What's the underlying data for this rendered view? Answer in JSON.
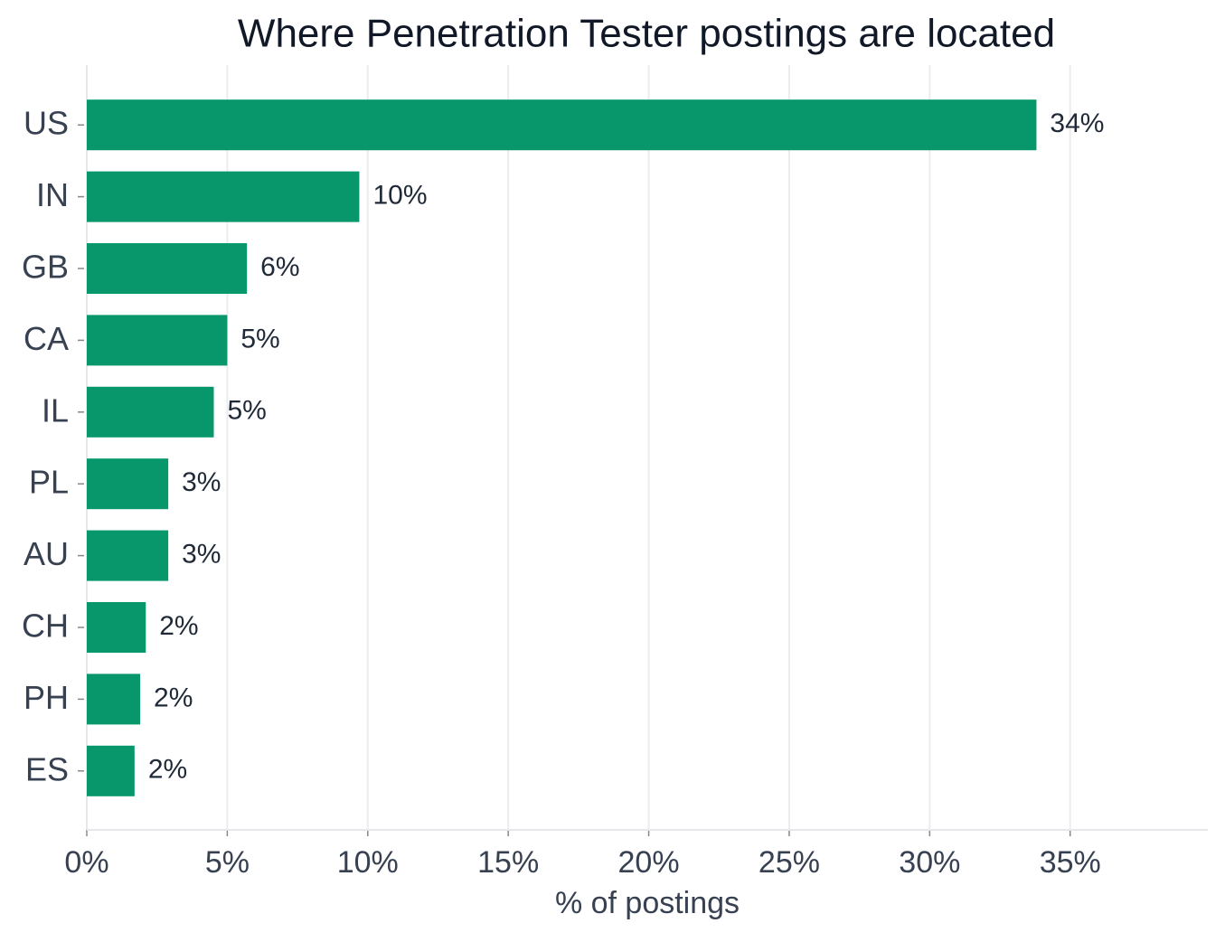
{
  "chart_data": {
    "type": "barh",
    "title": "Where Penetration Tester postings are located",
    "x_label": "% of postings",
    "categories": [
      "US",
      "IN",
      "GB",
      "CA",
      "IL",
      "PL",
      "AU",
      "CH",
      "PH",
      "ES"
    ],
    "values": [
      33.8,
      9.7,
      5.7,
      5.0,
      4.52,
      2.9,
      2.9,
      2.1,
      1.9,
      1.7
    ],
    "value_labels": [
      "34%",
      "10%",
      "6%",
      "5%",
      "5%",
      "3%",
      "3%",
      "2%",
      "2%",
      "2%"
    ],
    "color": "#07976b",
    "xlim": [
      0,
      39.9
    ],
    "xticks": [
      {
        "value": 0,
        "label": "0%"
      },
      {
        "value": 5,
        "label": "5%"
      },
      {
        "value": 10,
        "label": "10%"
      },
      {
        "value": 15,
        "label": "15%"
      },
      {
        "value": 20,
        "label": "20%"
      },
      {
        "value": 25,
        "label": "25%"
      },
      {
        "value": 30,
        "label": "30%"
      },
      {
        "value": 35,
        "label": "35%"
      }
    ],
    "grid": true
  }
}
